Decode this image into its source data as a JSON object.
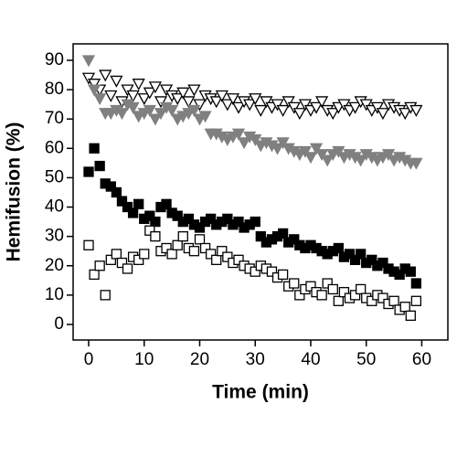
{
  "chart_data": {
    "type": "scatter",
    "xlabel": "Time (min)",
    "ylabel": "Hemifusion (%)",
    "x": [
      0,
      1,
      2,
      3,
      4,
      5,
      6,
      7,
      8,
      9,
      10,
      11,
      12,
      13,
      14,
      15,
      16,
      17,
      18,
      19,
      20,
      21,
      22,
      23,
      24,
      25,
      26,
      27,
      28,
      29,
      30,
      31,
      32,
      33,
      34,
      35,
      36,
      37,
      38,
      39,
      40,
      41,
      42,
      43,
      44,
      45,
      46,
      47,
      48,
      49,
      50,
      51,
      52,
      53,
      54,
      55,
      56,
      57,
      58,
      59
    ],
    "series": [
      {
        "marker": "triangle-down",
        "filled": false,
        "color": "#000000",
        "values": [
          84,
          82,
          80,
          85,
          78,
          83,
          76,
          80,
          78,
          82,
          77,
          79,
          81,
          76,
          80,
          78,
          77,
          79,
          76,
          80,
          75,
          78,
          77,
          76,
          78,
          75,
          77,
          74,
          76,
          75,
          77,
          73,
          76,
          74,
          75,
          73,
          76,
          74,
          72,
          75,
          73,
          74,
          76,
          73,
          72,
          74,
          75,
          73,
          74,
          76,
          75,
          73,
          74,
          72,
          75,
          74,
          73,
          72,
          74,
          73
        ]
      },
      {
        "marker": "triangle-down",
        "filled": true,
        "color": "#808080",
        "values": [
          90,
          80,
          77,
          72,
          72,
          73,
          72,
          75,
          74,
          71,
          72,
          73,
          70,
          72,
          74,
          73,
          70,
          71,
          72,
          73,
          70,
          71,
          65,
          65,
          64,
          63,
          64,
          65,
          62,
          64,
          63,
          61,
          62,
          61,
          60,
          62,
          60,
          59,
          58,
          59,
          57,
          60,
          58,
          56,
          58,
          59,
          57,
          58,
          57,
          56,
          58,
          57,
          56,
          57,
          58,
          56,
          57,
          56,
          55,
          55
        ]
      },
      {
        "marker": "square",
        "filled": true,
        "color": "#000000",
        "values": [
          52,
          60,
          54,
          48,
          47,
          45,
          42,
          40,
          38,
          41,
          36,
          37,
          35,
          40,
          41,
          38,
          37,
          35,
          36,
          34,
          33,
          35,
          36,
          34,
          35,
          36,
          34,
          35,
          33,
          34,
          35,
          30,
          28,
          29,
          30,
          31,
          28,
          29,
          27,
          26,
          27,
          26,
          25,
          24,
          25,
          26,
          23,
          24,
          22,
          24,
          21,
          22,
          20,
          21,
          19,
          18,
          17,
          19,
          18,
          14
        ]
      },
      {
        "marker": "square",
        "filled": false,
        "color": "#000000",
        "values": [
          27,
          17,
          20,
          10,
          22,
          24,
          21,
          19,
          23,
          22,
          24,
          32,
          30,
          25,
          26,
          24,
          27,
          30,
          26,
          25,
          29,
          26,
          24,
          22,
          25,
          23,
          21,
          22,
          20,
          19,
          18,
          20,
          19,
          18,
          16,
          17,
          13,
          14,
          10,
          12,
          13,
          11,
          10,
          14,
          12,
          8,
          11,
          9,
          10,
          12,
          9,
          8,
          10,
          9,
          7,
          8,
          5,
          6,
          3,
          8
        ]
      }
    ],
    "xlim": [
      -2.8,
      64.7
    ],
    "ylim": [
      -5.3,
      95.6
    ],
    "xticks": [
      0,
      10,
      20,
      30,
      40,
      50,
      60
    ],
    "yticks": [
      0,
      10,
      20,
      30,
      40,
      50,
      60,
      70,
      80,
      90
    ]
  }
}
